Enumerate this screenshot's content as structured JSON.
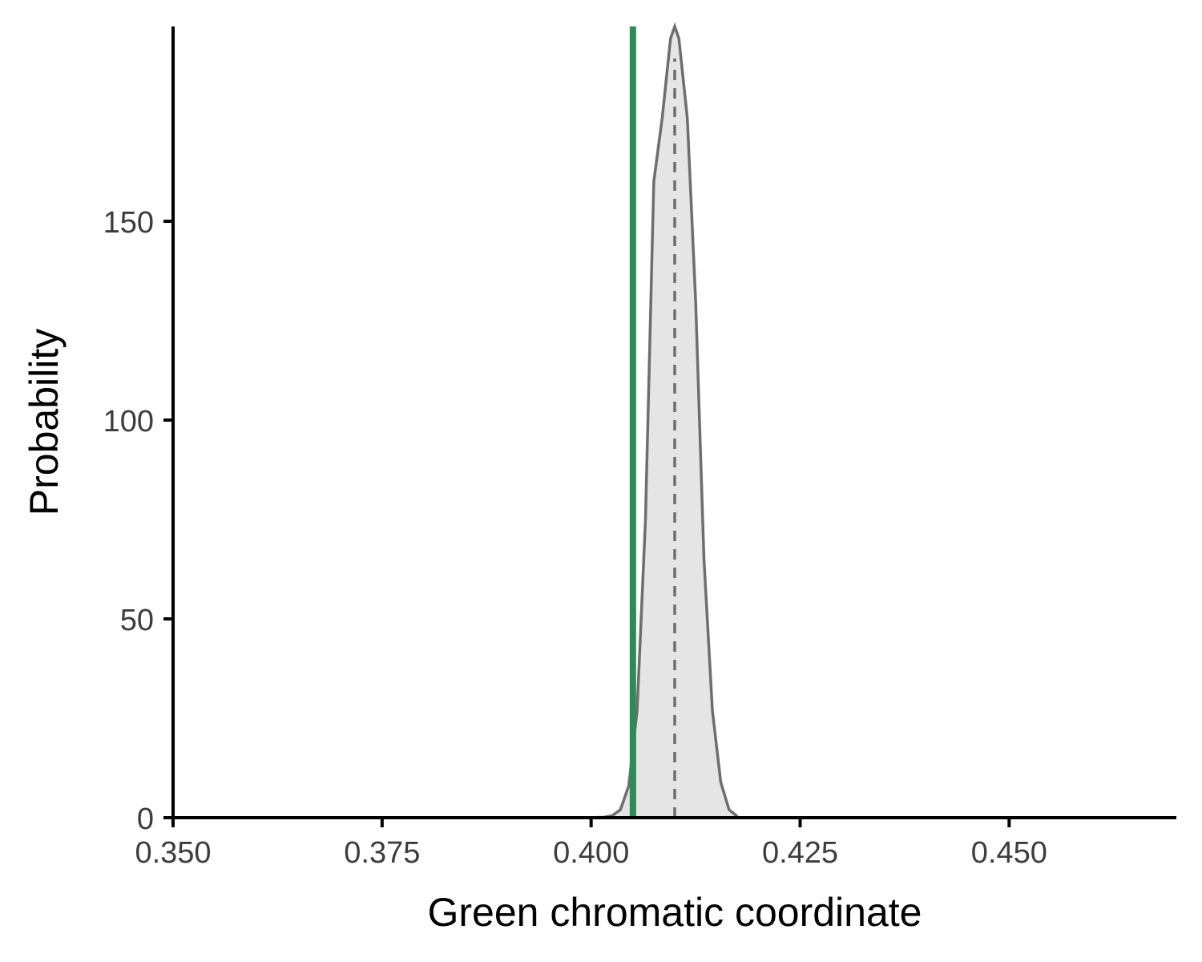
{
  "chart_data": {
    "type": "area",
    "title": "",
    "xlabel": "Green chromatic coordinate",
    "ylabel": "Probability",
    "xlim": [
      0.35,
      0.47
    ],
    "ylim": [
      0,
      199
    ],
    "x_ticks": [
      0.35,
      0.375,
      0.4,
      0.425,
      0.45
    ],
    "x_tick_labels": [
      "0.350",
      "0.375",
      "0.400",
      "0.425",
      "0.450"
    ],
    "y_ticks": [
      0,
      50,
      100,
      150
    ],
    "y_tick_labels": [
      "0",
      "50",
      "100",
      "150"
    ],
    "grid": false,
    "density": {
      "x": [
        0.3985,
        0.4015,
        0.4025,
        0.4035,
        0.4045,
        0.4055,
        0.4065,
        0.4075,
        0.4085,
        0.4095,
        0.41,
        0.4105,
        0.4115,
        0.4125,
        0.4135,
        0.4145,
        0.4155,
        0.4165,
        0.4175
      ],
      "y": [
        0,
        0.1,
        0.5,
        2,
        8,
        27,
        75,
        160,
        176,
        196,
        199,
        196,
        176,
        130,
        65,
        27,
        9,
        2,
        0.3
      ],
      "fill": "#e5e5e5",
      "line_color": "#6e6e6e"
    },
    "reference_lines": [
      {
        "x": 0.405,
        "color": "#2e8b57",
        "style": "solid"
      },
      {
        "x": 0.41,
        "color": "#6e6e6e",
        "style": "dashed"
      }
    ]
  }
}
